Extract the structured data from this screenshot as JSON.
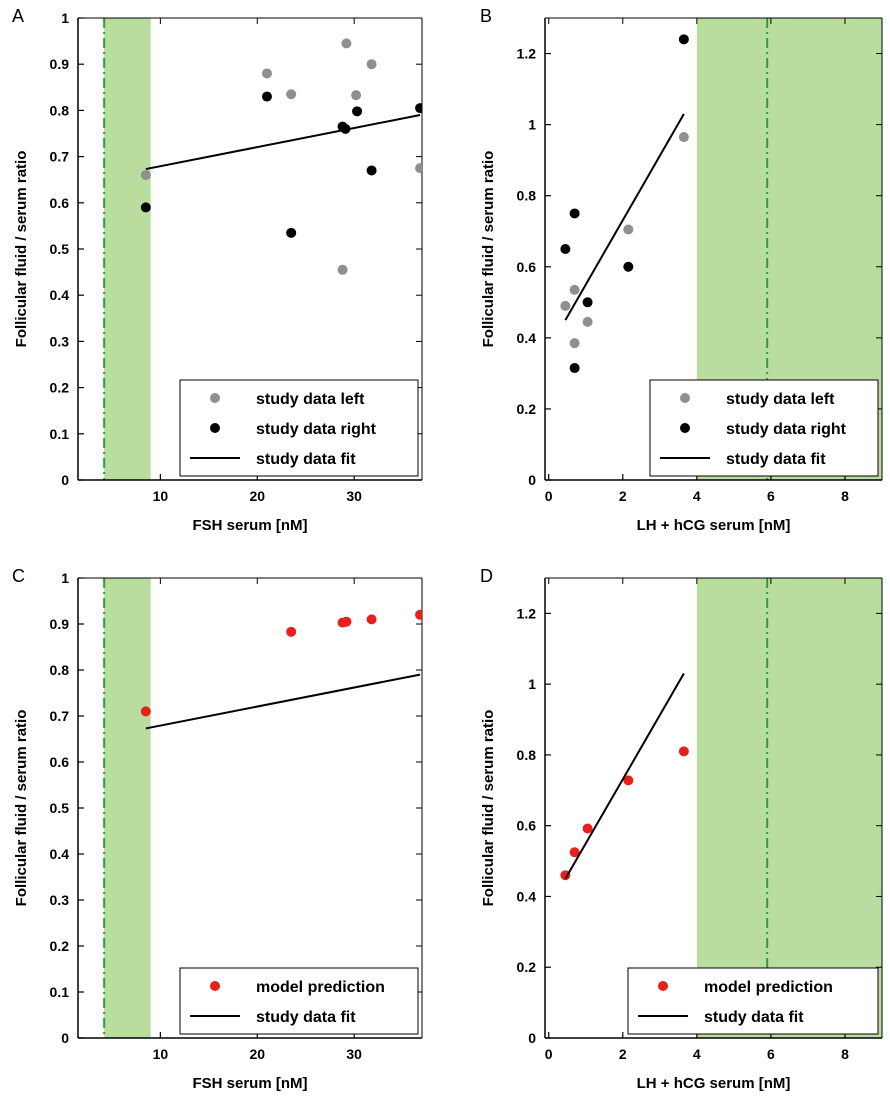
{
  "colors": {
    "band": "#b9dd9e",
    "band_line": "#2e9e3a",
    "left": "#8f8f8f",
    "right": "#000000",
    "fit": "#000000",
    "model": "#e8201b"
  },
  "chart_data": [
    {
      "panel_label": "A",
      "type": "scatter",
      "xlabel": "FSH serum [nM]",
      "ylabel": "Follicular fluid / serum ratio",
      "xlim": [
        1.5,
        37
      ],
      "ylim": [
        0,
        1
      ],
      "xticks": [
        10,
        20,
        30
      ],
      "yticks": [
        0,
        0.1,
        0.2,
        0.3,
        0.4,
        0.5,
        0.6,
        0.7,
        0.8,
        0.9,
        1
      ],
      "grid": false,
      "band": {
        "x": [
          4.2,
          9
        ],
        "line_x": 4.2
      },
      "legend_position": "bottom-right",
      "legend": [
        "study data left",
        "study data right",
        "study data fit"
      ],
      "series": [
        {
          "name": "study data left",
          "kind": "points",
          "color": "left",
          "x": [
            8.5,
            21,
            23.5,
            28.8,
            29.2,
            30.2,
            31.8,
            36.8
          ],
          "y": [
            0.66,
            0.88,
            0.835,
            0.455,
            0.945,
            0.833,
            0.9,
            0.675
          ]
        },
        {
          "name": "study data right",
          "kind": "points",
          "color": "right",
          "x": [
            8.5,
            21,
            23.5,
            28.8,
            29.1,
            30.3,
            31.8,
            36.8
          ],
          "y": [
            0.59,
            0.83,
            0.535,
            0.765,
            0.76,
            0.798,
            0.67,
            0.805
          ]
        },
        {
          "name": "study data fit",
          "kind": "line",
          "color": "fit",
          "x": [
            8.5,
            36.8
          ],
          "y": [
            0.673,
            0.79
          ]
        }
      ]
    },
    {
      "panel_label": "B",
      "type": "scatter",
      "xlabel": "LH + hCG serum [nM]",
      "ylabel": "Follicular fluid / serum ratio",
      "xlim": [
        -0.1,
        9
      ],
      "ylim": [
        0,
        1.3
      ],
      "xticks": [
        0,
        2,
        4,
        6,
        8
      ],
      "yticks": [
        0,
        0.2,
        0.4,
        0.6,
        0.8,
        1,
        1.2
      ],
      "grid": false,
      "band": {
        "x": [
          4,
          9
        ],
        "line_x": 5.9
      },
      "legend_position": "bottom-right",
      "legend": [
        "study data left",
        "study data right",
        "study data fit"
      ],
      "series": [
        {
          "name": "study data left",
          "kind": "points",
          "color": "left",
          "x": [
            0.45,
            0.7,
            0.7,
            1.05,
            2.15,
            3.65
          ],
          "y": [
            0.49,
            0.535,
            0.385,
            0.445,
            0.705,
            0.965
          ]
        },
        {
          "name": "study data right",
          "kind": "points",
          "color": "right",
          "x": [
            0.45,
            0.7,
            0.7,
            1.05,
            2.15,
            3.65
          ],
          "y": [
            0.65,
            0.75,
            0.315,
            0.5,
            0.6,
            1.24
          ]
        },
        {
          "name": "study data fit",
          "kind": "line",
          "color": "fit",
          "x": [
            0.45,
            3.65
          ],
          "y": [
            0.45,
            1.03
          ]
        }
      ]
    },
    {
      "panel_label": "C",
      "type": "scatter",
      "xlabel": "FSH serum [nM]",
      "ylabel": "Follicular fluid / serum ratio",
      "xlim": [
        1.5,
        37
      ],
      "ylim": [
        0,
        1
      ],
      "xticks": [
        10,
        20,
        30
      ],
      "yticks": [
        0,
        0.1,
        0.2,
        0.3,
        0.4,
        0.5,
        0.6,
        0.7,
        0.8,
        0.9,
        1
      ],
      "grid": false,
      "band": {
        "x": [
          4.2,
          9
        ],
        "line_x": 4.2
      },
      "legend_position": "bottom-right",
      "legend": [
        "model prediction",
        "study data fit"
      ],
      "series": [
        {
          "name": "model prediction",
          "kind": "points",
          "color": "model",
          "x": [
            8.5,
            23.5,
            28.8,
            29.2,
            31.8,
            36.8
          ],
          "y": [
            0.71,
            0.883,
            0.903,
            0.905,
            0.91,
            0.92
          ]
        },
        {
          "name": "study data fit",
          "kind": "line",
          "color": "fit",
          "x": [
            8.5,
            36.8
          ],
          "y": [
            0.673,
            0.79
          ]
        }
      ]
    },
    {
      "panel_label": "D",
      "type": "scatter",
      "xlabel": "LH + hCG serum [nM]",
      "ylabel": "Follicular fluid / serum ratio",
      "xlim": [
        -0.1,
        9
      ],
      "ylim": [
        0,
        1.3
      ],
      "xticks": [
        0,
        2,
        4,
        6,
        8
      ],
      "yticks": [
        0,
        0.2,
        0.4,
        0.6,
        0.8,
        1,
        1.2
      ],
      "grid": false,
      "band": {
        "x": [
          4,
          9
        ],
        "line_x": 5.9
      },
      "legend_position": "bottom-right",
      "legend": [
        "model prediction",
        "study data fit"
      ],
      "series": [
        {
          "name": "model prediction",
          "kind": "points",
          "color": "model",
          "x": [
            0.45,
            0.7,
            1.05,
            2.15,
            3.65
          ],
          "y": [
            0.46,
            0.525,
            0.592,
            0.728,
            0.81
          ]
        },
        {
          "name": "study data fit",
          "kind": "line",
          "color": "fit",
          "x": [
            0.45,
            3.65
          ],
          "y": [
            0.45,
            1.03
          ]
        }
      ]
    }
  ]
}
